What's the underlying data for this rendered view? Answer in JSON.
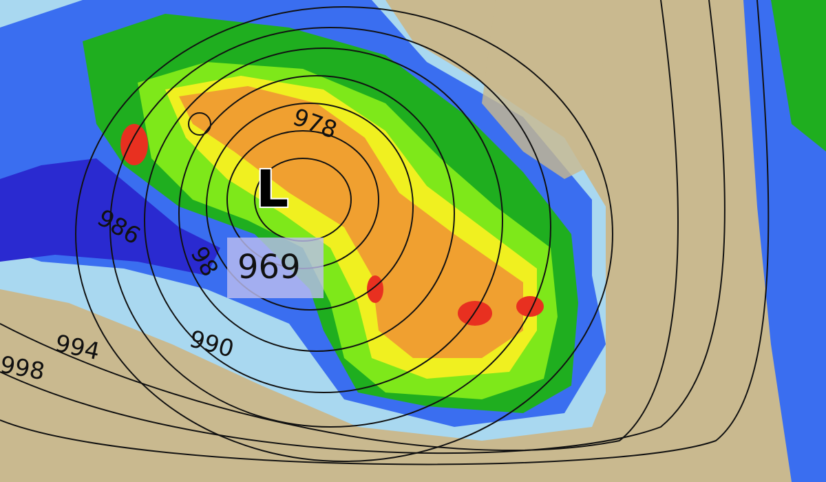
{
  "map": {
    "low_marker": "L",
    "low_pressure": "969",
    "isobar_labels": [
      "978",
      "986",
      "98",
      "990",
      "994",
      "998"
    ],
    "colors": {
      "land": "#c9b98f",
      "light_rain": "#a9d8f0",
      "moderate_rain": "#3a6ef0",
      "heavy_blue": "#2a2ad0",
      "green": "#1fae1f",
      "lime": "#7ee81a",
      "yellow": "#f0f020",
      "orange": "#f0a030",
      "red": "#e83020"
    }
  }
}
